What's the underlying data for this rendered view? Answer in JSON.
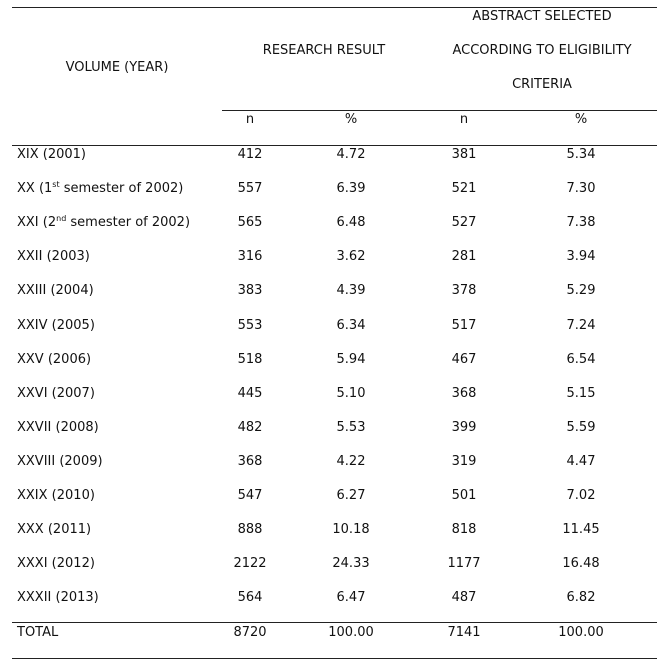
{
  "table": {
    "header": {
      "volume": "VOLUME (YEAR)",
      "research": "RESEARCH RESULT",
      "abstract": [
        "ABSTRACT SELECTED",
        "ACCORDING TO ELIGIBILITY",
        "CRITERIA"
      ],
      "sub": [
        "n",
        "%",
        "n",
        "%"
      ]
    },
    "rows": [
      [
        "XIX (2001)",
        "412",
        "4.72",
        "381",
        "5.34"
      ],
      [
        {
          "pre": "XX (1",
          "sup": "st",
          "post": " semester of 2002)"
        },
        "557",
        "6.39",
        "521",
        "7.30"
      ],
      [
        {
          "pre": "XXI (2",
          "sup": "nd",
          "post": " semester of 2002)"
        },
        "565",
        "6.48",
        "527",
        "7.38"
      ],
      [
        "XXII (2003)",
        "316",
        "3.62",
        "281",
        "3.94"
      ],
      [
        "XXIII (2004)",
        "383",
        "4.39",
        "378",
        "5.29"
      ],
      [
        "XXIV (2005)",
        "553",
        "6.34",
        "517",
        "7.24"
      ],
      [
        "XXV (2006)",
        "518",
        "5.94",
        "467",
        "6.54"
      ],
      [
        "XXVI (2007)",
        "445",
        "5.10",
        "368",
        "5.15"
      ],
      [
        "XXVII (2008)",
        "482",
        "5.53",
        "399",
        "5.59"
      ],
      [
        "XXVIII (2009)",
        "368",
        "4.22",
        "319",
        "4.47"
      ],
      [
        "XXIX (2010)",
        "547",
        "6.27",
        "501",
        "7.02"
      ],
      [
        "XXX (2011)",
        "888",
        "10.18",
        "818",
        "11.45"
      ],
      [
        "XXXI (2012)",
        "2122",
        "24.33",
        "1177",
        "16.48"
      ],
      [
        "XXXII (2013)",
        "564",
        "6.47",
        "487",
        "6.82"
      ]
    ],
    "total": [
      "TOTAL",
      "8720",
      "100.00",
      "7141",
      "100.00"
    ]
  }
}
